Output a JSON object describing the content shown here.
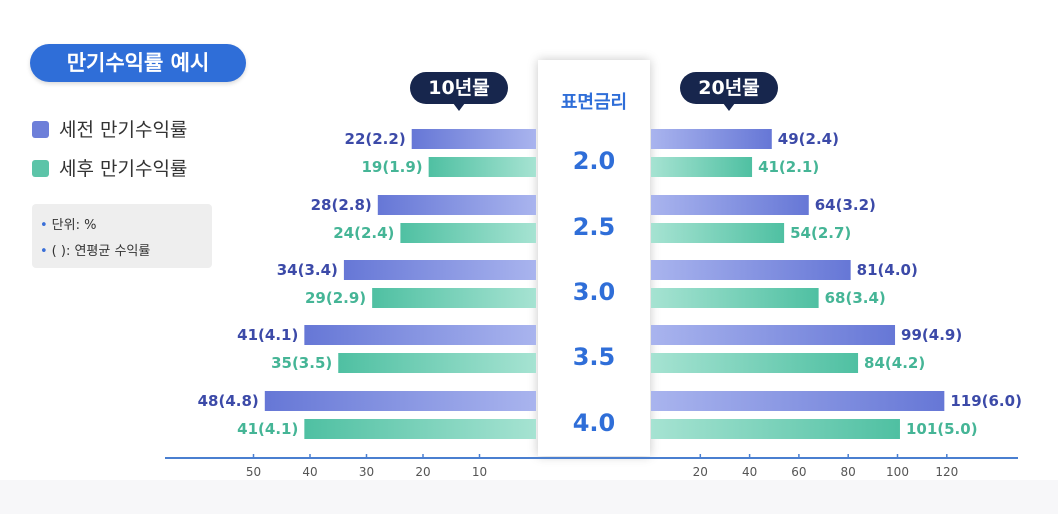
{
  "title": "만기수익률 예시",
  "legend": [
    {
      "label": "세전 만기수익률",
      "color": "#7e8ee0"
    },
    {
      "label": "세후 만기수익률",
      "color": "#6ccdb4"
    }
  ],
  "notes": [
    "단위: %",
    "(      ): 연평균 수익률"
  ],
  "center_header": "표면금리",
  "colors": {
    "pre_tax": "#7e8ee0",
    "post_tax": "#6ccdb4",
    "pre_tax_label": "#3c4aa8",
    "post_tax_label": "#45b596",
    "axis": "#4a7fd0",
    "accent": "#2f6ed8"
  },
  "chart_data": [
    {
      "type": "bar",
      "orientation": "horizontal",
      "direction": "right-to-left",
      "title": "10년물",
      "categories": [
        "2.0",
        "2.5",
        "3.0",
        "3.5",
        "4.0"
      ],
      "series": [
        {
          "name": "세전 만기수익률",
          "values": [
            22,
            28,
            34,
            41,
            48
          ],
          "labels": [
            "22(2.2)",
            "28(2.8)",
            "34(3.4)",
            "41(4.1)",
            "48(4.8)"
          ]
        },
        {
          "name": "세후 만기수익률",
          "values": [
            19,
            24,
            29,
            35,
            41
          ],
          "labels": [
            "19(1.9)",
            "24(2.4)",
            "29(2.9)",
            "35(3.5)",
            "41(4.1)"
          ]
        }
      ],
      "ticks": [
        10,
        20,
        30,
        40,
        50
      ],
      "xlim": [
        0,
        50
      ]
    },
    {
      "type": "bar",
      "orientation": "horizontal",
      "direction": "left-to-right",
      "title": "20년물",
      "categories": [
        "2.0",
        "2.5",
        "3.0",
        "3.5",
        "4.0"
      ],
      "series": [
        {
          "name": "세전 만기수익률",
          "values": [
            49,
            64,
            81,
            99,
            119
          ],
          "labels": [
            "49(2.4)",
            "64(3.2)",
            "81(4.0)",
            "99(4.9)",
            "119(6.0)"
          ]
        },
        {
          "name": "세후 만기수익률",
          "values": [
            41,
            54,
            68,
            84,
            101
          ],
          "labels": [
            "41(2.1)",
            "54(2.7)",
            "68(3.4)",
            "84(4.2)",
            "101(5.0)"
          ]
        }
      ],
      "ticks": [
        20,
        40,
        60,
        80,
        100,
        120
      ],
      "xlim": [
        0,
        120
      ]
    }
  ]
}
